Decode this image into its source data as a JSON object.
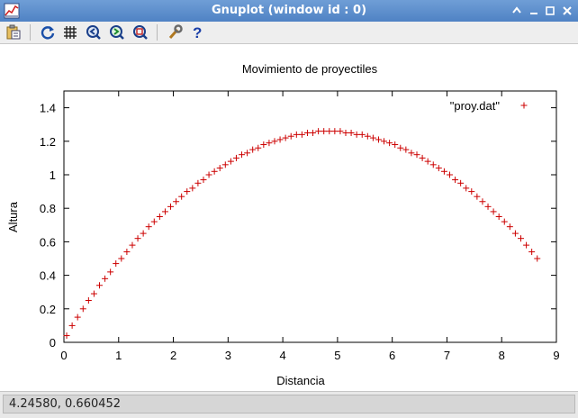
{
  "window": {
    "title": "Gnuplot (window id : 0)"
  },
  "toolbar": {
    "buttons": [
      {
        "name": "copy-to-clipboard",
        "icon": "clipboard-icon"
      },
      {
        "name": "replot",
        "icon": "refresh-icon"
      },
      {
        "name": "toggle-grid",
        "icon": "grid-icon"
      },
      {
        "name": "previous-zoom",
        "icon": "zoom-previous-icon"
      },
      {
        "name": "next-zoom",
        "icon": "zoom-next-icon"
      },
      {
        "name": "autoscale",
        "icon": "autoscale-icon"
      },
      {
        "name": "settings",
        "icon": "wrench-icon"
      },
      {
        "name": "help",
        "icon": "help-icon"
      }
    ]
  },
  "status": {
    "coords": "4.24580,  0.660452"
  },
  "colors": {
    "series": "#cc0000",
    "titlebar": "#5b8ccd"
  },
  "chart_data": {
    "type": "scatter",
    "title": "Movimiento de proyectiles",
    "xlabel": "Distancia",
    "ylabel": "Altura",
    "xlim": [
      0,
      9
    ],
    "ylim": [
      0,
      1.5
    ],
    "xticks": [
      "0",
      "1",
      "2",
      "3",
      "4",
      "5",
      "6",
      "7",
      "8",
      "9"
    ],
    "yticks": [
      "0",
      "0.2",
      "0.4",
      "0.6",
      "0.8",
      "1",
      "1.2",
      "1.4"
    ],
    "legend_position": "top-right",
    "grid": false,
    "series": [
      {
        "name": "\"proy.dat\"",
        "marker": "+",
        "x": [
          0.05,
          0.15,
          0.25,
          0.35,
          0.45,
          0.55,
          0.65,
          0.75,
          0.85,
          0.95,
          1.05,
          1.15,
          1.25,
          1.35,
          1.45,
          1.55,
          1.65,
          1.75,
          1.85,
          1.95,
          2.05,
          2.15,
          2.25,
          2.35,
          2.45,
          2.55,
          2.65,
          2.75,
          2.85,
          2.95,
          3.05,
          3.15,
          3.25,
          3.35,
          3.45,
          3.55,
          3.65,
          3.75,
          3.85,
          3.95,
          4.05,
          4.15,
          4.25,
          4.35,
          4.45,
          4.55,
          4.65,
          4.75,
          4.85,
          4.95,
          5.05,
          5.15,
          5.25,
          5.35,
          5.45,
          5.55,
          5.65,
          5.75,
          5.85,
          5.95,
          6.05,
          6.15,
          6.25,
          6.35,
          6.45,
          6.55,
          6.65,
          6.75,
          6.85,
          6.95,
          7.05,
          7.15,
          7.25,
          7.35,
          7.45,
          7.55,
          7.65,
          7.75,
          7.85,
          7.95,
          8.05,
          8.15,
          8.25,
          8.35,
          8.45,
          8.55,
          8.65
        ],
        "y": [
          0.04,
          0.1,
          0.15,
          0.2,
          0.25,
          0.29,
          0.34,
          0.38,
          0.42,
          0.47,
          0.5,
          0.54,
          0.58,
          0.62,
          0.65,
          0.69,
          0.72,
          0.75,
          0.78,
          0.81,
          0.84,
          0.87,
          0.9,
          0.92,
          0.95,
          0.97,
          1.0,
          1.02,
          1.04,
          1.06,
          1.08,
          1.1,
          1.12,
          1.13,
          1.15,
          1.16,
          1.18,
          1.19,
          1.2,
          1.21,
          1.22,
          1.23,
          1.24,
          1.24,
          1.25,
          1.25,
          1.26,
          1.26,
          1.26,
          1.26,
          1.26,
          1.25,
          1.25,
          1.24,
          1.24,
          1.23,
          1.22,
          1.21,
          1.2,
          1.19,
          1.18,
          1.16,
          1.15,
          1.13,
          1.12,
          1.1,
          1.08,
          1.06,
          1.04,
          1.02,
          1.0,
          0.97,
          0.95,
          0.92,
          0.9,
          0.87,
          0.84,
          0.81,
          0.78,
          0.75,
          0.72,
          0.69,
          0.65,
          0.62,
          0.58,
          0.54,
          0.5
        ]
      }
    ]
  }
}
